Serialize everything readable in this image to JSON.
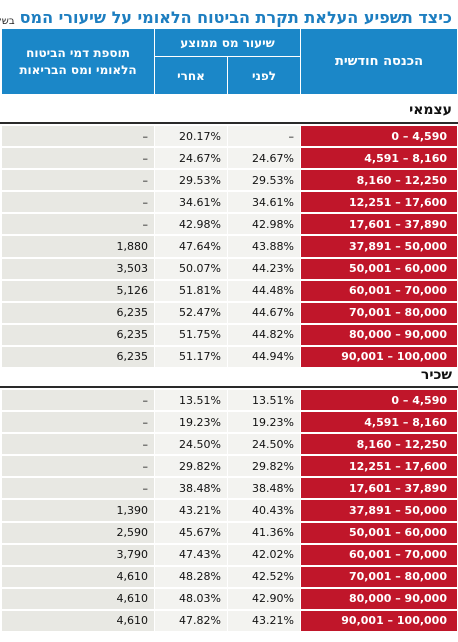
{
  "header": {
    "title": "כיצד תשפיע העלאת תקרת הביטוח הלאומי על שיעורי המס",
    "unit": "בשקלים"
  },
  "columns": {
    "income": "הכנסה חודשית",
    "tax_rate": "שיעור מס ממוצע",
    "before": "לפני",
    "after": "אחרי",
    "extra_line1": "תוספת דמי הביטוח",
    "extra_line2": "הלאומי ומס הבריאות"
  },
  "colors": {
    "header_blue": "#1b87c8",
    "income_red": "#c0162a",
    "title_blue": "#1d7ec0"
  },
  "sections": [
    {
      "label": "עצמאי",
      "rows": [
        {
          "income": "0 – 4,590",
          "before": "–",
          "after": "20.17%",
          "extra": "–"
        },
        {
          "income": "4,591 – 8,160",
          "before": "24.67%",
          "after": "24.67%",
          "extra": "–"
        },
        {
          "income": "8,160 – 12,250",
          "before": "29.53%",
          "after": "29.53%",
          "extra": "–"
        },
        {
          "income": "12,251 – 17,600",
          "before": "34.61%",
          "after": "34.61%",
          "extra": "–"
        },
        {
          "income": "17,601 – 37,890",
          "before": "42.98%",
          "after": "42.98%",
          "extra": "–"
        },
        {
          "income": "37,891 – 50,000",
          "before": "43.88%",
          "after": "47.64%",
          "extra": "1,880"
        },
        {
          "income": "50,001 – 60,000",
          "before": "44.23%",
          "after": "50.07%",
          "extra": "3,503"
        },
        {
          "income": "60,001 – 70,000",
          "before": "44.48%",
          "after": "51.81%",
          "extra": "5,126"
        },
        {
          "income": "70,001 – 80,000",
          "before": "44.67%",
          "after": "52.47%",
          "extra": "6,235"
        },
        {
          "income": "80,000 – 90,000",
          "before": "44.82%",
          "after": "51.75%",
          "extra": "6,235"
        },
        {
          "income": "90,001 – 100,000",
          "before": "44.94%",
          "after": "51.17%",
          "extra": "6,235"
        }
      ]
    },
    {
      "label": "שכיר",
      "rows": [
        {
          "income": "0 – 4,590",
          "before": "13.51%",
          "after": "13.51%",
          "extra": "–"
        },
        {
          "income": "4,591 – 8,160",
          "before": "19.23%",
          "after": "19.23%",
          "extra": "–"
        },
        {
          "income": "8,160 – 12,250",
          "before": "24.50%",
          "after": "24.50%",
          "extra": "–"
        },
        {
          "income": "12,251 – 17,600",
          "before": "29.82%",
          "after": "29.82%",
          "extra": "–"
        },
        {
          "income": "17,601 – 37,890",
          "before": "38.48%",
          "after": "38.48%",
          "extra": "–"
        },
        {
          "income": "37,891 – 50,000",
          "before": "40.43%",
          "after": "43.21%",
          "extra": "1,390"
        },
        {
          "income": "50,001 – 60,000",
          "before": "41.36%",
          "after": "45.67%",
          "extra": "2,590"
        },
        {
          "income": "60,001 – 70,000",
          "before": "42.02%",
          "after": "47.43%",
          "extra": "3,790"
        },
        {
          "income": "70,001 – 80,000",
          "before": "42.52%",
          "after": "48.28%",
          "extra": "4,610"
        },
        {
          "income": "80,000 – 90,000",
          "before": "42.90%",
          "after": "48.03%",
          "extra": "4,610"
        },
        {
          "income": "90,001 – 100,000",
          "before": "43.21%",
          "after": "47.82%",
          "extra": "4,610"
        }
      ]
    }
  ]
}
